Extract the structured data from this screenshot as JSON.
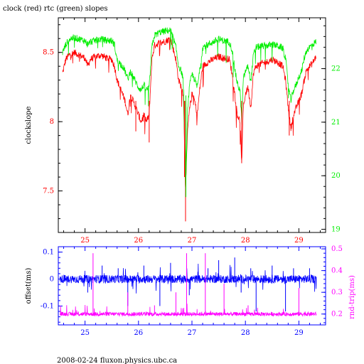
{
  "title": "clock (red) rtc (green) slopes",
  "footer": "2008-02-24 fluxon.physics.ubc.ca",
  "colors": {
    "red": "#ff0000",
    "green": "#00ee00",
    "blue": "#0000ff",
    "magenta": "#ff00ff",
    "axis": "#000000"
  },
  "chart_data": [
    {
      "type": "line",
      "ylabel": "clockslope",
      "y2label": "",
      "xlim": [
        24.5,
        29.5
      ],
      "ylim": [
        7.2,
        8.75
      ],
      "y2lim": [
        18.94,
        22.95
      ],
      "x_ticks": [
        "25",
        "26",
        "27",
        "28",
        "29"
      ],
      "y_ticks": [
        "7.5",
        "8",
        "8.5"
      ],
      "y2_ticks": [
        "19",
        "20",
        "21",
        "22"
      ],
      "series": [
        {
          "name": "clock",
          "axis": "left",
          "points": [
            [
              24.58,
              8.35
            ],
            [
              24.64,
              8.45
            ],
            [
              24.7,
              8.48
            ],
            [
              24.8,
              8.5
            ],
            [
              24.9,
              8.48
            ],
            [
              25.0,
              8.46
            ],
            [
              25.05,
              8.4
            ],
            [
              25.1,
              8.45
            ],
            [
              25.2,
              8.47
            ],
            [
              25.3,
              8.48
            ],
            [
              25.4,
              8.46
            ],
            [
              25.5,
              8.45
            ],
            [
              25.55,
              8.4
            ],
            [
              25.6,
              8.3
            ],
            [
              25.65,
              8.25
            ],
            [
              25.7,
              8.2
            ],
            [
              25.75,
              8.15
            ],
            [
              25.8,
              8.05
            ],
            [
              25.85,
              8.2
            ],
            [
              25.9,
              8.15
            ],
            [
              25.95,
              8.1
            ],
            [
              26.0,
              8.05
            ],
            [
              26.05,
              8.0
            ],
            [
              26.1,
              8.05
            ],
            [
              26.15,
              8.0
            ],
            [
              26.2,
              8.05
            ],
            [
              26.25,
              8.45
            ],
            [
              26.3,
              8.55
            ],
            [
              26.4,
              8.57
            ],
            [
              26.5,
              8.58
            ],
            [
              26.6,
              8.6
            ],
            [
              26.7,
              8.45
            ],
            [
              26.75,
              8.3
            ],
            [
              26.8,
              8.25
            ],
            [
              26.84,
              8.2
            ],
            [
              26.88,
              7.5
            ],
            [
              26.92,
              7.95
            ],
            [
              26.96,
              8.1
            ],
            [
              27.0,
              8.2
            ],
            [
              27.05,
              8.15
            ],
            [
              27.1,
              8.05
            ],
            [
              27.15,
              8.25
            ],
            [
              27.2,
              8.4
            ],
            [
              27.3,
              8.43
            ],
            [
              27.4,
              8.45
            ],
            [
              27.5,
              8.47
            ],
            [
              27.6,
              8.46
            ],
            [
              27.7,
              8.45
            ],
            [
              27.75,
              8.35
            ],
            [
              27.8,
              8.2
            ],
            [
              27.85,
              8.05
            ],
            [
              27.9,
              8.0
            ],
            [
              27.93,
              7.7
            ],
            [
              27.96,
              8.1
            ],
            [
              28.0,
              8.2
            ],
            [
              28.05,
              8.25
            ],
            [
              28.1,
              8.1
            ],
            [
              28.15,
              8.35
            ],
            [
              28.2,
              8.4
            ],
            [
              28.3,
              8.42
            ],
            [
              28.4,
              8.43
            ],
            [
              28.5,
              8.45
            ],
            [
              28.6,
              8.43
            ],
            [
              28.7,
              8.4
            ],
            [
              28.75,
              8.3
            ],
            [
              28.8,
              8.1
            ],
            [
              28.85,
              7.95
            ],
            [
              28.9,
              8.05
            ],
            [
              28.95,
              8.1
            ],
            [
              29.0,
              8.15
            ],
            [
              29.05,
              8.2
            ],
            [
              29.1,
              8.3
            ],
            [
              29.15,
              8.38
            ],
            [
              29.2,
              8.4
            ],
            [
              29.25,
              8.42
            ],
            [
              29.32,
              8.47
            ]
          ]
        },
        {
          "name": "rtc",
          "axis": "right",
          "points": [
            [
              24.58,
              22.3
            ],
            [
              24.64,
              22.45
            ],
            [
              24.7,
              22.55
            ],
            [
              24.8,
              22.58
            ],
            [
              24.9,
              22.55
            ],
            [
              25.0,
              22.52
            ],
            [
              25.05,
              22.45
            ],
            [
              25.1,
              22.5
            ],
            [
              25.2,
              22.53
            ],
            [
              25.3,
              22.55
            ],
            [
              25.4,
              22.53
            ],
            [
              25.5,
              22.52
            ],
            [
              25.55,
              22.45
            ],
            [
              25.6,
              22.15
            ],
            [
              25.65,
              22.1
            ],
            [
              25.7,
              22.05
            ],
            [
              25.75,
              21.95
            ],
            [
              25.8,
              21.8
            ],
            [
              25.85,
              21.95
            ],
            [
              25.9,
              21.85
            ],
            [
              25.95,
              21.75
            ],
            [
              26.0,
              21.65
            ],
            [
              26.05,
              21.6
            ],
            [
              26.1,
              21.7
            ],
            [
              26.15,
              21.6
            ],
            [
              26.2,
              21.65
            ],
            [
              26.25,
              22.4
            ],
            [
              26.3,
              22.62
            ],
            [
              26.4,
              22.68
            ],
            [
              26.5,
              22.7
            ],
            [
              26.6,
              22.72
            ],
            [
              26.7,
              22.4
            ],
            [
              26.75,
              22.05
            ],
            [
              26.8,
              21.95
            ],
            [
              26.84,
              21.8
            ],
            [
              26.88,
              19.6
            ],
            [
              26.92,
              21.3
            ],
            [
              26.96,
              21.7
            ],
            [
              27.0,
              21.9
            ],
            [
              27.05,
              21.8
            ],
            [
              27.1,
              21.65
            ],
            [
              27.15,
              22.0
            ],
            [
              27.2,
              22.4
            ],
            [
              27.3,
              22.45
            ],
            [
              27.4,
              22.5
            ],
            [
              27.5,
              22.55
            ],
            [
              27.6,
              22.52
            ],
            [
              27.7,
              22.5
            ],
            [
              27.75,
              22.35
            ],
            [
              27.8,
              22.0
            ],
            [
              27.85,
              21.7
            ],
            [
              27.9,
              21.6
            ],
            [
              27.93,
              21.0
            ],
            [
              27.96,
              21.8
            ],
            [
              28.0,
              21.95
            ],
            [
              28.05,
              22.05
            ],
            [
              28.1,
              21.75
            ],
            [
              28.15,
              22.25
            ],
            [
              28.2,
              22.4
            ],
            [
              28.3,
              22.42
            ],
            [
              28.4,
              22.43
            ],
            [
              28.5,
              22.45
            ],
            [
              28.6,
              22.43
            ],
            [
              28.7,
              22.38
            ],
            [
              28.75,
              22.2
            ],
            [
              28.8,
              21.7
            ],
            [
              28.85,
              21.4
            ],
            [
              28.9,
              21.6
            ],
            [
              28.95,
              21.7
            ],
            [
              29.0,
              21.85
            ],
            [
              29.05,
              21.95
            ],
            [
              29.1,
              22.2
            ],
            [
              29.15,
              22.35
            ],
            [
              29.2,
              22.4
            ],
            [
              29.25,
              22.45
            ],
            [
              29.32,
              22.5
            ]
          ]
        }
      ]
    },
    {
      "type": "line",
      "ylabel": "offset(ms)",
      "y2label": "rnd-trip(ms)",
      "xlim": [
        24.5,
        29.5
      ],
      "ylim": [
        -0.17,
        0.12
      ],
      "y2lim": [
        0.15,
        0.51
      ],
      "x_ticks": [
        "25",
        "26",
        "27",
        "28",
        "29"
      ],
      "y_ticks": [
        "-0.1",
        "0",
        "0.1"
      ],
      "y2_ticks": [
        "0.2",
        "0.3",
        "0.4",
        "0.5"
      ],
      "series": [
        {
          "name": "offset",
          "axis": "left",
          "base": 0.0,
          "spikes": [
            [
              25.05,
              -0.05
            ],
            [
              25.32,
              0.05
            ],
            [
              25.62,
              0.04
            ],
            [
              25.8,
              -0.1
            ],
            [
              26.1,
              0.05
            ],
            [
              26.4,
              -0.1
            ],
            [
              26.6,
              0.06
            ],
            [
              26.9,
              0.05
            ],
            [
              26.95,
              -0.06
            ],
            [
              27.3,
              0.04
            ],
            [
              27.5,
              0.07
            ],
            [
              27.8,
              0.08
            ],
            [
              27.92,
              -0.05
            ],
            [
              28.1,
              0.04
            ],
            [
              28.2,
              -0.12
            ],
            [
              28.5,
              0.05
            ],
            [
              28.75,
              -0.12
            ],
            [
              28.9,
              0.04
            ],
            [
              29.2,
              0.04
            ]
          ]
        },
        {
          "name": "rnd-trip",
          "axis": "right",
          "base": 0.2,
          "spikes": [
            [
              25.15,
              0.48
            ],
            [
              25.8,
              0.3
            ],
            [
              26.3,
              0.24
            ],
            [
              26.7,
              0.3
            ],
            [
              26.9,
              0.48
            ],
            [
              27.25,
              0.48
            ],
            [
              27.6,
              0.34
            ],
            [
              28.05,
              0.24
            ],
            [
              29.0,
              0.32
            ]
          ]
        }
      ]
    }
  ]
}
